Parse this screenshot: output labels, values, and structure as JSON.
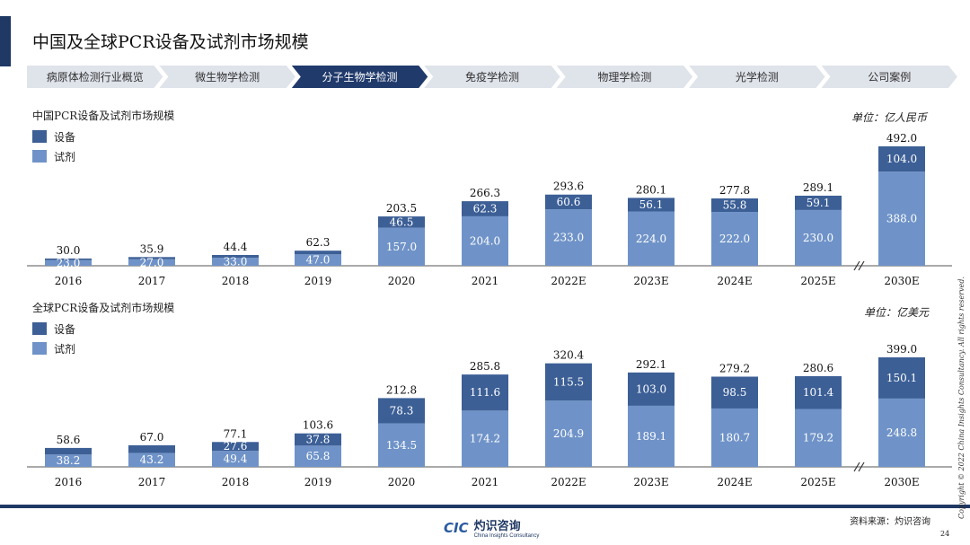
{
  "title": "中国及全球PCR设备及试剂市场规模",
  "nav": [
    "病原体检测行业概览",
    "微生物学检测",
    "分子生物学检测",
    "免疫学检测",
    "物理学检测",
    "光学检测",
    "公司案例"
  ],
  "nav_active": 2,
  "colors": {
    "equipment": "#3c5f96",
    "reagent": "#6f93c8",
    "dark": "#1f3864"
  },
  "chart_data": [
    {
      "type": "bar",
      "stacked": true,
      "title": "中国PCR设备及试剂市场规模",
      "unit": "单位：亿人民币",
      "categories": [
        "2016",
        "2017",
        "2018",
        "2019",
        "2020",
        "2021",
        "2022E",
        "2023E",
        "2024E",
        "2025E",
        "2030E"
      ],
      "legend": [
        "设备",
        "试剂"
      ],
      "series": [
        {
          "name": "试剂",
          "values": [
            23.0,
            27.0,
            33.0,
            47.0,
            157.0,
            204.0,
            233.0,
            224.0,
            222.0,
            230.0,
            388.0
          ],
          "labels": [
            "23.0",
            "27.0",
            "33.0",
            "47.0",
            "157.0",
            "204.0",
            "233.0",
            "224.0",
            "222.0",
            "230.0",
            "388.0"
          ]
        },
        {
          "name": "设备",
          "values": [
            7.0,
            8.9,
            11.4,
            15.3,
            46.5,
            62.3,
            60.6,
            56.1,
            55.8,
            59.1,
            104.0
          ],
          "labels": [
            "",
            "",
            "",
            "",
            "46.5",
            "62.3",
            "60.6",
            "56.1",
            "55.8",
            "59.1",
            "104.0"
          ]
        }
      ],
      "totals": [
        "30.0",
        "35.9",
        "44.4",
        "62.3",
        "203.5",
        "266.3",
        "293.6",
        "280.1",
        "277.8",
        "289.1",
        "492.0"
      ],
      "axis_break_before": "2030E"
    },
    {
      "type": "bar",
      "stacked": true,
      "title": "全球PCR设备及试剂市场规模",
      "unit": "单位：亿美元",
      "categories": [
        "2016",
        "2017",
        "2018",
        "2019",
        "2020",
        "2021",
        "2022E",
        "2023E",
        "2024E",
        "2025E",
        "2030E"
      ],
      "legend": [
        "设备",
        "试剂"
      ],
      "series": [
        {
          "name": "试剂",
          "values": [
            38.2,
            43.2,
            49.4,
            65.8,
            134.5,
            174.2,
            204.9,
            189.1,
            180.7,
            179.2,
            248.8
          ],
          "labels": [
            "38.2",
            "43.2",
            "49.4",
            "65.8",
            "134.5",
            "174.2",
            "204.9",
            "189.1",
            "180.7",
            "179.2",
            "248.8"
          ]
        },
        {
          "name": "设备",
          "values": [
            20.4,
            23.8,
            27.6,
            37.8,
            78.3,
            111.6,
            115.5,
            103.0,
            98.5,
            101.4,
            150.1
          ],
          "labels": [
            "",
            "",
            "27.6",
            "37.8",
            "78.3",
            "111.6",
            "115.5",
            "103.0",
            "98.5",
            "101.4",
            "150.1"
          ]
        }
      ],
      "totals": [
        "58.6",
        "67.0",
        "77.1",
        "103.6",
        "212.8",
        "285.8",
        "320.4",
        "292.1",
        "279.2",
        "280.6",
        "399.0"
      ],
      "axis_break_before": "2030E"
    }
  ],
  "footer": {
    "logo_mark": "CIC",
    "logo_cn": "灼识咨询",
    "logo_en": "China Insights Consultancy",
    "source": "资料来源：灼识咨询",
    "page": "24",
    "copyright": "Copyright © 2022 China Insights Consultancy. All rights reserved."
  }
}
